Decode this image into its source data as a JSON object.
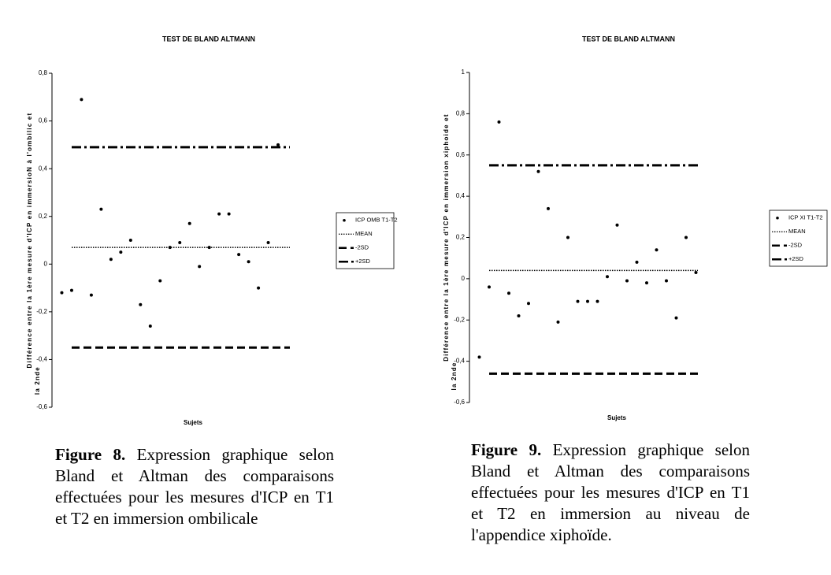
{
  "chart_data": [
    {
      "type": "scatter",
      "title": "TEST DE BLAND ALTMANN",
      "ylabel": [
        "Différence entre la 1ère mesure d'ICP en immersioN à l'ombilic et",
        "la 2nde"
      ],
      "xlabel": "Sujets",
      "xlim": [
        0,
        25
      ],
      "ylim": [
        -0.6,
        0.8
      ],
      "yticks": [
        {
          "value": -0.6,
          "label": "-0,6"
        },
        {
          "value": -0.4,
          "label": "-0,4"
        },
        {
          "value": -0.2,
          "label": "-0,2"
        },
        0,
        {
          "value": 0.2,
          "label": "0,2"
        },
        {
          "value": 0.4,
          "label": "0,4"
        },
        {
          "value": 0.6,
          "label": "0,6"
        },
        {
          "value": 0.8,
          "label": "0,8"
        }
      ],
      "series": [
        {
          "name": "ICP OMB T1-T2",
          "style": "points",
          "color": "#000000",
          "x": [
            1,
            2,
            3,
            4,
            5,
            6,
            7,
            8,
            9,
            10,
            11,
            12,
            13,
            14,
            15,
            16,
            17,
            18,
            19,
            20,
            21,
            22,
            23
          ],
          "values": [
            -0.12,
            -0.11,
            0.69,
            -0.13,
            0.23,
            0.02,
            0.05,
            0.1,
            -0.17,
            -0.26,
            -0.07,
            0.07,
            0.09,
            0.17,
            -0.01,
            0.07,
            0.21,
            0.21,
            0.04,
            0.01,
            -0.1,
            0.09,
            0.5
          ]
        },
        {
          "name": "MEAN",
          "style": "dotted",
          "color": "#000000",
          "value": 0.07
        },
        {
          "name": "-2SD",
          "style": "dashed",
          "color": "#000000",
          "value": -0.35
        },
        {
          "name": "+2SD",
          "style": "dashdot",
          "color": "#000000",
          "value": 0.49
        }
      ],
      "caption_label": "Figure 8.",
      "caption": "Expression graphique selon Bland et Altman des comparaisons effectuées pour les mesures d'ICP en T1 et T2 en immersion ombilicale"
    },
    {
      "type": "scatter",
      "title": "TEST DE BLAND ALTMANN",
      "ylabel": [
        "Différence entre la 1ère mesure d'ICP en immersion xiphoide et",
        "la 2nde"
      ],
      "xlabel": "Sujets",
      "xlim": [
        0,
        24
      ],
      "ylim": [
        -0.6,
        1
      ],
      "yticks": [
        {
          "value": -0.6,
          "label": "-0,6"
        },
        {
          "value": -0.4,
          "label": "-0,4"
        },
        {
          "value": -0.2,
          "label": "-0,2"
        },
        0,
        {
          "value": 0.2,
          "label": "0,2"
        },
        {
          "value": 0.4,
          "label": "0,4"
        },
        {
          "value": 0.6,
          "label": "0,6"
        },
        {
          "value": 0.8,
          "label": "0,8"
        },
        1
      ],
      "series": [
        {
          "name": "ICP XI T1-T2",
          "style": "points",
          "color": "#000000",
          "x": [
            1,
            2,
            3,
            4,
            5,
            6,
            7,
            8,
            9,
            10,
            11,
            12,
            13,
            14,
            15,
            16,
            17,
            18,
            19,
            20,
            21,
            22,
            23
          ],
          "values": [
            -0.38,
            -0.04,
            0.76,
            -0.07,
            -0.18,
            -0.12,
            0.52,
            0.34,
            -0.21,
            0.2,
            -0.11,
            -0.11,
            -0.11,
            0.01,
            0.26,
            -0.01,
            0.08,
            -0.02,
            0.14,
            -0.01,
            -0.19,
            0.2,
            0.03
          ]
        },
        {
          "name": "MEAN",
          "style": "dotted",
          "color": "#000000",
          "value": 0.04
        },
        {
          "name": "-2SD",
          "style": "dashed",
          "color": "#000000",
          "value": -0.46
        },
        {
          "name": "+2SD",
          "style": "dashdot",
          "color": "#000000",
          "value": 0.55
        }
      ],
      "caption_label": "Figure 9.",
      "caption": "Expression graphique selon Bland et Altman des comparaisons effectuées pour les mesures d'ICP en T1 et T2 en immersion au niveau de l'appendice xiphoïde."
    }
  ]
}
